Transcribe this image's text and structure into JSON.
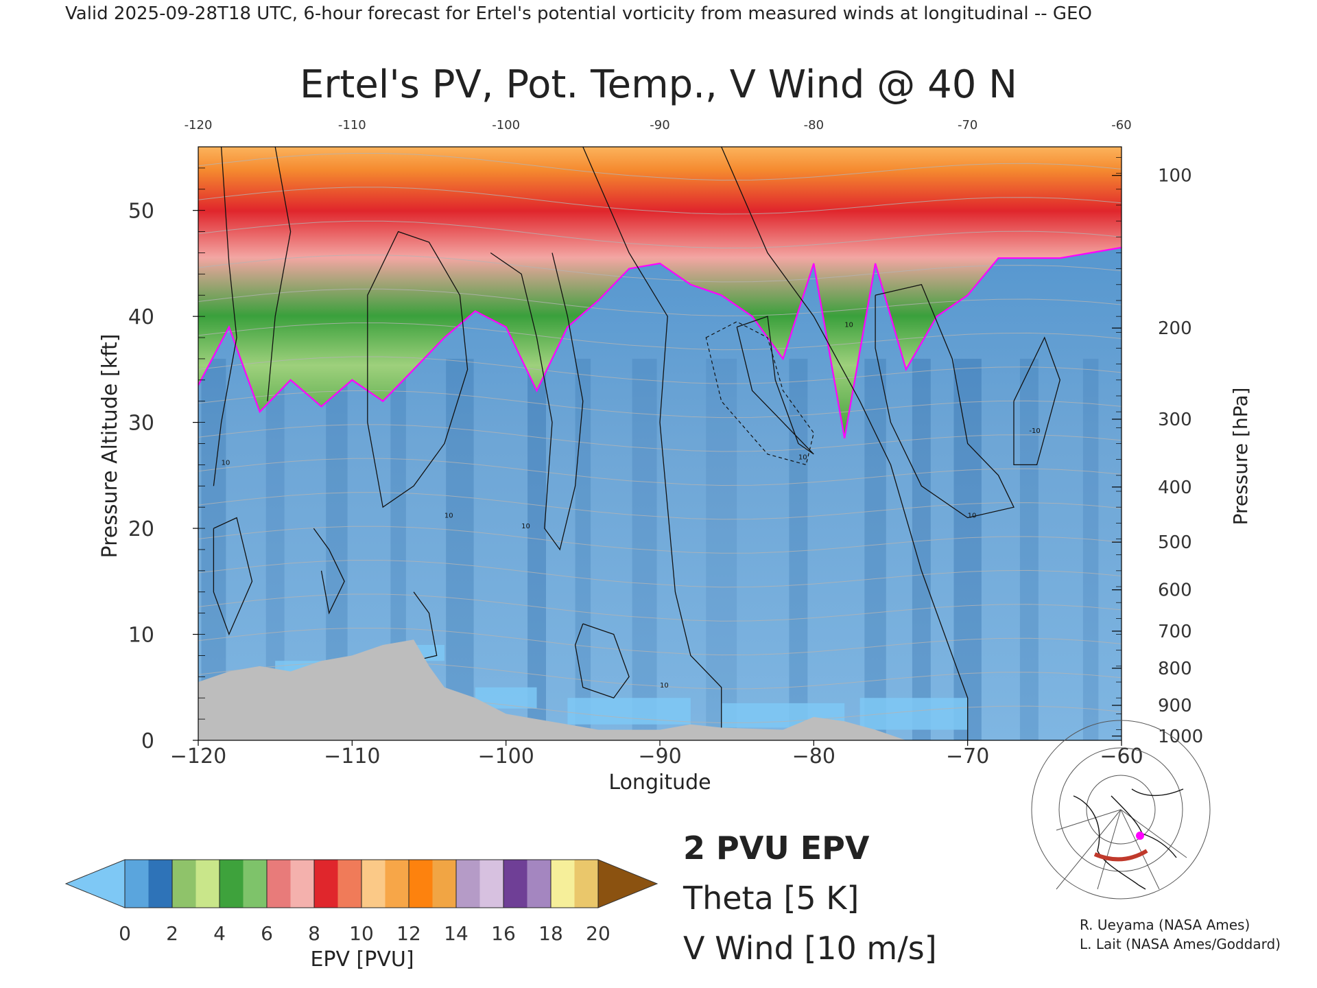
{
  "header": {
    "valid_line": "Valid 2025-09-28T18 UTC, 6-hour forecast for Ertel's potential vorticity from measured winds at longitudinal -- GEO"
  },
  "chart_data": {
    "type": "heatmap",
    "title": "Ertel's PV, Pot. Temp., V Wind @ 40 N",
    "xlabel": "Longitude",
    "ylabel": "Pressure Altitude [kft]",
    "ylabel_right": "Pressure [hPa]",
    "xlim": [
      -120,
      -60
    ],
    "ylim": [
      0,
      56
    ],
    "x_ticks": [
      -120,
      -110,
      -100,
      -90,
      -80,
      -70,
      -60
    ],
    "x_tick_labels": [
      "−120",
      "−110",
      "−100",
      "−90",
      "−80",
      "−70",
      "−60"
    ],
    "top_tick_labels": [
      "-120",
      "-110",
      "-100",
      "-90",
      "-80",
      "-70",
      "-60"
    ],
    "y_ticks": [
      0,
      10,
      20,
      30,
      40,
      50
    ],
    "y_tick_labels": [
      "0",
      "10",
      "20",
      "30",
      "40",
      "50"
    ],
    "pressure_ticks": [
      {
        "hpa": 100,
        "kft": 53.3,
        "label": "100"
      },
      {
        "hpa": 200,
        "kft": 38.9,
        "label": "200"
      },
      {
        "hpa": 300,
        "kft": 30.3,
        "label": "300"
      },
      {
        "hpa": 400,
        "kft": 23.9,
        "label": "400"
      },
      {
        "hpa": 500,
        "kft": 18.7,
        "label": "500"
      },
      {
        "hpa": 600,
        "kft": 14.2,
        "label": "600"
      },
      {
        "hpa": 700,
        "kft": 10.3,
        "label": "700"
      },
      {
        "hpa": 800,
        "kft": 6.8,
        "label": "800"
      },
      {
        "hpa": 900,
        "kft": 3.3,
        "label": "900"
      },
      {
        "hpa": 1000,
        "kft": 0.4,
        "label": "1000"
      }
    ],
    "tropopause_2pvu_kft": [
      {
        "lon": -120,
        "kft": 33.5
      },
      {
        "lon": -118,
        "kft": 39
      },
      {
        "lon": -116,
        "kft": 31
      },
      {
        "lon": -114,
        "kft": 34
      },
      {
        "lon": -112,
        "kft": 31.5
      },
      {
        "lon": -110,
        "kft": 34
      },
      {
        "lon": -108,
        "kft": 32
      },
      {
        "lon": -106,
        "kft": 35
      },
      {
        "lon": -104,
        "kft": 38
      },
      {
        "lon": -102,
        "kft": 40.5
      },
      {
        "lon": -100,
        "kft": 39
      },
      {
        "lon": -98,
        "kft": 33
      },
      {
        "lon": -96,
        "kft": 39
      },
      {
        "lon": -94,
        "kft": 41.5
      },
      {
        "lon": -92,
        "kft": 44.5
      },
      {
        "lon": -90,
        "kft": 45
      },
      {
        "lon": -88,
        "kft": 43
      },
      {
        "lon": -86,
        "kft": 42
      },
      {
        "lon": -84,
        "kft": 40
      },
      {
        "lon": -82,
        "kft": 36
      },
      {
        "lon": -80,
        "kft": 45
      },
      {
        "lon": -78,
        "kft": 28.5
      },
      {
        "lon": -76,
        "kft": 45
      },
      {
        "lon": -74,
        "kft": 35
      },
      {
        "lon": -72,
        "kft": 40
      },
      {
        "lon": -70,
        "kft": 42
      },
      {
        "lon": -68,
        "kft": 45.5
      },
      {
        "lon": -66,
        "kft": 45.5
      },
      {
        "lon": -64,
        "kft": 45.5
      },
      {
        "lon": -62,
        "kft": 46
      },
      {
        "lon": -60,
        "kft": 46.5
      }
    ],
    "terrain_kft": [
      {
        "lon": -120,
        "kft": 5.5
      },
      {
        "lon": -118,
        "kft": 6.5
      },
      {
        "lon": -116,
        "kft": 7
      },
      {
        "lon": -114,
        "kft": 6.5
      },
      {
        "lon": -112,
        "kft": 7.5
      },
      {
        "lon": -110,
        "kft": 8
      },
      {
        "lon": -108,
        "kft": 9
      },
      {
        "lon": -106,
        "kft": 9.5
      },
      {
        "lon": -105,
        "kft": 7
      },
      {
        "lon": -104,
        "kft": 5
      },
      {
        "lon": -102,
        "kft": 4
      },
      {
        "lon": -100,
        "kft": 2.5
      },
      {
        "lon": -98,
        "kft": 2
      },
      {
        "lon": -96,
        "kft": 1.5
      },
      {
        "lon": -94,
        "kft": 1
      },
      {
        "lon": -90,
        "kft": 1
      },
      {
        "lon": -88,
        "kft": 1.5
      },
      {
        "lon": -86,
        "kft": 1.2
      },
      {
        "lon": -82,
        "kft": 1
      },
      {
        "lon": -80,
        "kft": 2.2
      },
      {
        "lon": -78,
        "kft": 1.8
      },
      {
        "lon": -76,
        "kft": 1
      },
      {
        "lon": -75,
        "kft": 0.5
      },
      {
        "lon": -74,
        "kft": 0
      },
      {
        "lon": -60,
        "kft": 0
      }
    ],
    "v_wind_contour_labels": [
      "10",
      "10",
      "10",
      "10",
      "10",
      "10",
      "-10",
      "10"
    ]
  },
  "colorbar": {
    "label": "EPV [PVU]",
    "ticks": [
      "0",
      "2",
      "4",
      "6",
      "8",
      "10",
      "12",
      "14",
      "16",
      "18",
      "20"
    ],
    "colors": [
      "#5aa5dd",
      "#2e73b8",
      "#8fc36a",
      "#c9e68a",
      "#3ea23c",
      "#7ec36a",
      "#e87b7a",
      "#f4b1ad",
      "#e0262c",
      "#f07b59",
      "#fbc987",
      "#f7a648",
      "#fd820e",
      "#f1a544",
      "#b59bc7",
      "#d7c1e0",
      "#6f3f96",
      "#a486c0",
      "#f6ef9a",
      "#eac76b"
    ],
    "under_color": "#7ec8f5",
    "over_color": "#8b5210"
  },
  "legend": {
    "epv_label": "2 PVU EPV",
    "theta_label": "Theta [5 K]",
    "vwind_label": "V Wind [10 m/s]",
    "epv_color": "#ff00ff",
    "theta_color": "#b4b4b4",
    "vwind_color": "#111111"
  },
  "credits": {
    "line1": "R. Ueyama (NASA Ames)",
    "line2": "L. Lait (NASA Ames/Goddard)"
  },
  "inset_map": {
    "marker_color": "#ff00ff",
    "section_line_color": "#c0392b"
  }
}
